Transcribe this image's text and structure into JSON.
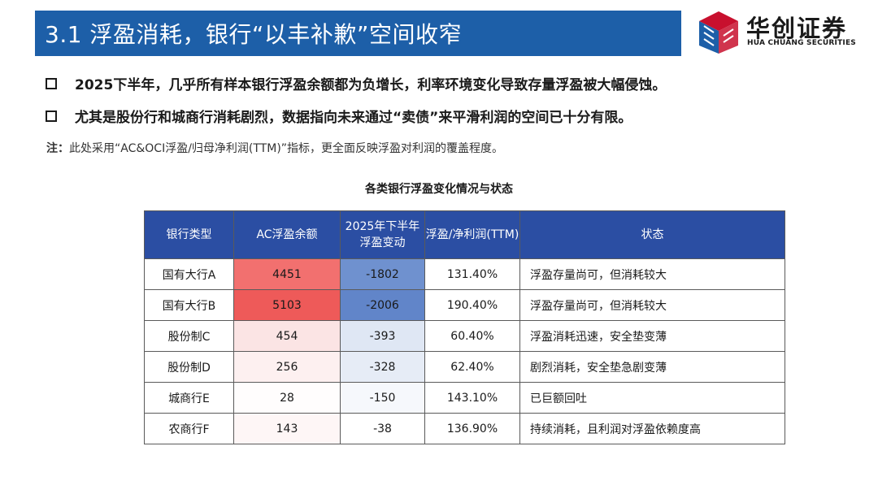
{
  "header": {
    "title": "3.1 浮盈消耗，银行“以丰补歉”空间收窄"
  },
  "logo": {
    "name_cn": "华创证券",
    "name_en": "HUA CHUANG SECURITIES",
    "colors": [
      "#c8102e",
      "#1d5fa8"
    ]
  },
  "bullets": [
    "2025下半年，几乎所有样本银行浮盈余额都为负增长，利率环境变化导致存量浮盈被大幅侵蚀。",
    "尤其是股份行和城商行消耗剧烈，数据指向未来通过“卖债”来平滑利润的空间已十分有限。"
  ],
  "note": {
    "prefix": "注：",
    "text": "此处采用“AC&OCI浮盈/归母净利润(TTM)”指标，更全面反映浮盈对利润的覆盖程度。"
  },
  "table": {
    "title": "各类银行浮盈变化情况与状态",
    "headers": [
      "银行类型",
      "AC浮盈余额",
      "2025年下半年浮盈变动",
      "浮盈/净利润(TTM)",
      "状态"
    ],
    "rows": [
      {
        "type": "国有大行A",
        "balance": "4451",
        "change": "-1802",
        "ratio": "131.40%",
        "status": "浮盈存量尚可，但消耗较大"
      },
      {
        "type": "国有大行B",
        "balance": "5103",
        "change": "-2006",
        "ratio": "190.40%",
        "status": "浮盈存量尚可，但消耗较大"
      },
      {
        "type": "股份制C",
        "balance": "454",
        "change": "-393",
        "ratio": "60.40%",
        "status": "浮盈消耗迅速，安全垫变薄"
      },
      {
        "type": "股份制D",
        "balance": "256",
        "change": "-328",
        "ratio": "62.40%",
        "status": "剧烈消耗，安全垫急剧变薄"
      },
      {
        "type": "城商行E",
        "balance": "28",
        "change": "-150",
        "ratio": "143.10%",
        "status": "已巨额回吐"
      },
      {
        "type": "农商行F",
        "balance": "143",
        "change": "-38",
        "ratio": "136.90%",
        "status": "持续消耗，且利润对浮盈依赖度高"
      }
    ],
    "balance_heat_colors": [
      "#f2706f",
      "#ee5a59",
      "#fbe4e4",
      "#fdf0f0",
      "#fffdfd",
      "#fef6f6"
    ],
    "change_heat_colors": [
      "#6f91cf",
      "#6185c9",
      "#dfe7f4",
      "#e6ecf6",
      "#f6f8fc",
      "#ffffff"
    ],
    "header_color": "#2b4ea3"
  }
}
